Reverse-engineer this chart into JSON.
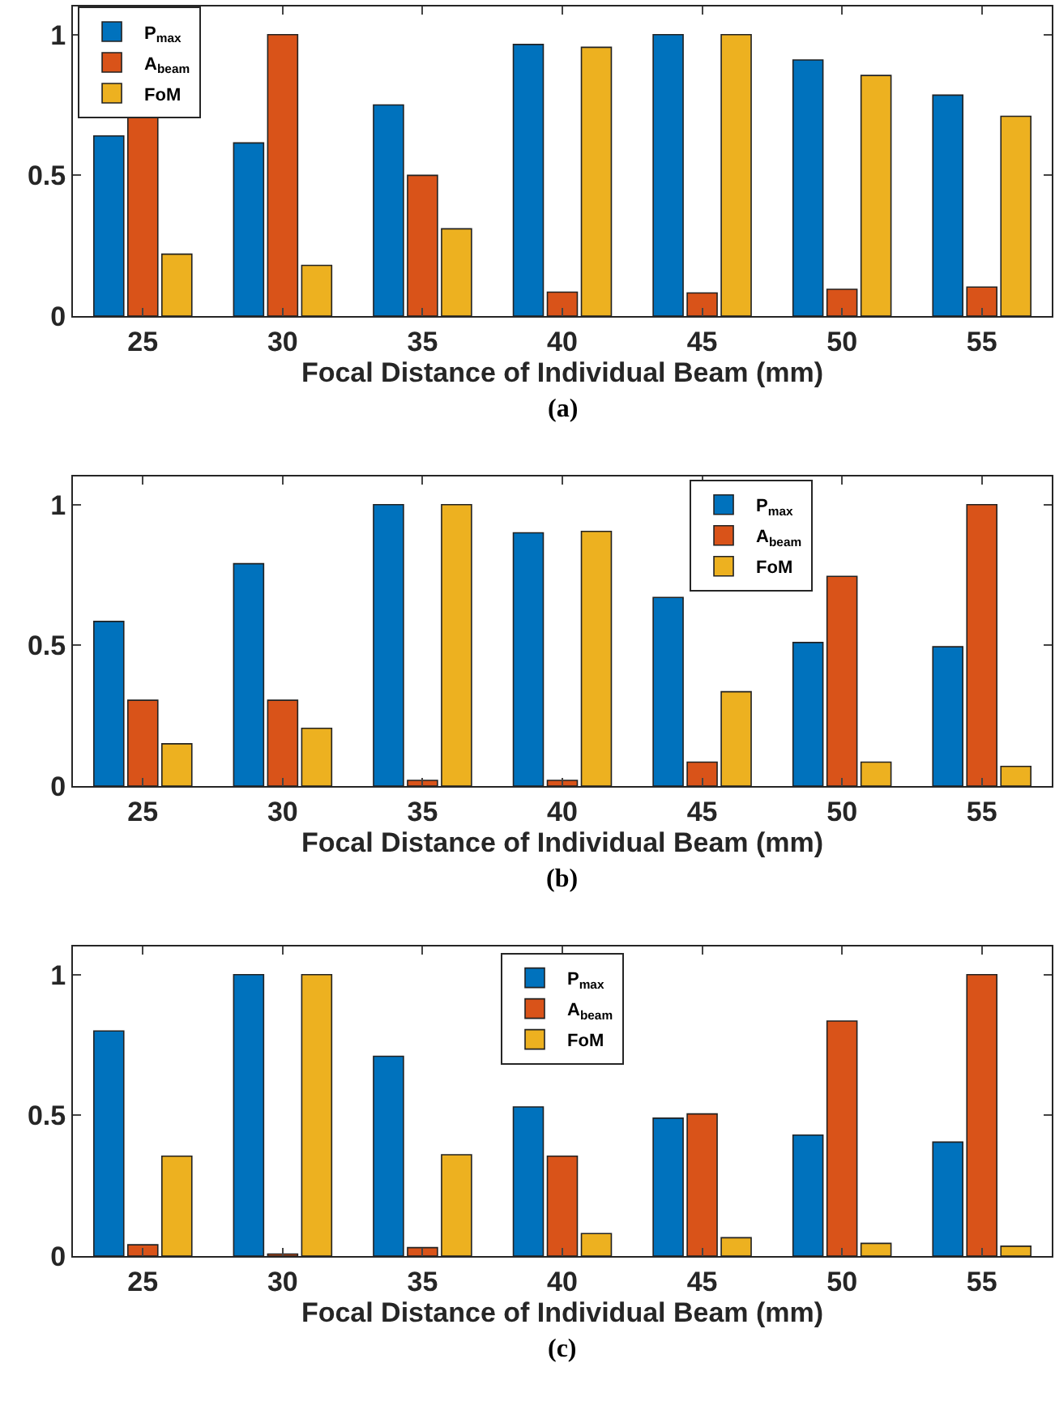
{
  "chart_data": [
    {
      "type": "bar",
      "categories": [
        "25",
        "30",
        "35",
        "40",
        "45",
        "50",
        "55"
      ],
      "xlabel": "Focal Distance of Individual Beam (mm)",
      "ylim": [
        0,
        1.1
      ],
      "yticks": [
        0,
        0.5,
        1
      ],
      "grid": false,
      "legend": "top left",
      "annotations": [
        "(a)"
      ],
      "series": [
        {
          "name": "P$_{max}$",
          "color": "#0072bd",
          "values": [
            0.64,
            0.615,
            0.75,
            0.965,
            1,
            0.91,
            0.785
          ]
        },
        {
          "name": "A$_{beam}$",
          "color": "#d95319",
          "values": [
            0.71,
            1,
            0.5,
            0.085,
            0.082,
            0.095,
            0.103
          ]
        },
        {
          "name": "FoM",
          "color": "#edb120",
          "values": [
            0.22,
            0.18,
            0.31,
            0.955,
            1,
            0.855,
            0.71
          ]
        }
      ]
    },
    {
      "type": "bar",
      "categories": [
        "25",
        "30",
        "35",
        "40",
        "45",
        "50",
        "55"
      ],
      "xlabel": "Focal Distance of Individual Beam (mm)",
      "ylim": [
        0,
        1.1
      ],
      "yticks": [
        0,
        0.5,
        1
      ],
      "grid": false,
      "legend": "top right",
      "annotations": [
        "(b)"
      ],
      "series": [
        {
          "name": "P$_{max}$",
          "color": "#0072bd",
          "values": [
            0.585,
            0.79,
            1,
            0.9,
            0.67,
            0.51,
            0.495
          ]
        },
        {
          "name": "A$_{beam}$",
          "color": "#d95319",
          "values": [
            0.305,
            0.305,
            0.02,
            0.02,
            0.085,
            0.745,
            1
          ]
        },
        {
          "name": "FoM",
          "color": "#edb120",
          "values": [
            0.15,
            0.205,
            1,
            0.905,
            0.335,
            0.085,
            0.07
          ]
        }
      ]
    },
    {
      "type": "bar",
      "categories": [
        "25",
        "30",
        "35",
        "40",
        "45",
        "50",
        "55"
      ],
      "xlabel": "Focal Distance of Individual Beam (mm)",
      "ylim": [
        0,
        1.1
      ],
      "yticks": [
        0,
        0.5,
        1
      ],
      "grid": false,
      "legend": "top",
      "annotations": [
        "(c)"
      ],
      "series": [
        {
          "name": "P$_{max}$",
          "color": "#0072bd",
          "values": [
            0.8,
            1,
            0.71,
            0.53,
            0.49,
            0.43,
            0.405
          ]
        },
        {
          "name": "A$_{beam}$",
          "color": "#d95319",
          "values": [
            0.04,
            0.007,
            0.03,
            0.355,
            0.505,
            0.835,
            1
          ]
        },
        {
          "name": "FoM",
          "color": "#edb120",
          "values": [
            0.355,
            1,
            0.36,
            0.08,
            0.065,
            0.045,
            0.035
          ]
        }
      ]
    }
  ]
}
